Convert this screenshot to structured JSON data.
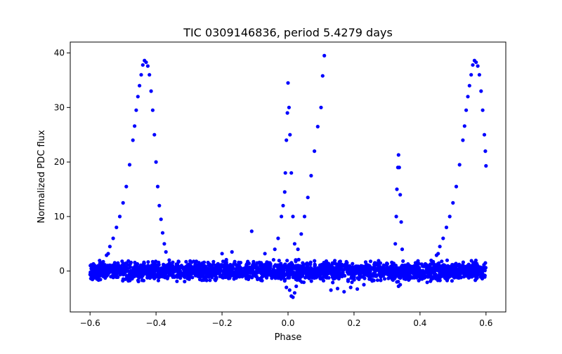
{
  "chart_data": {
    "type": "scatter",
    "title": "TIC 0309146836, period 5.4279 days",
    "xlabel": "Phase",
    "ylabel": "Normalized PDC flux",
    "xlim": [
      -0.66,
      0.66
    ],
    "ylim": [
      -7.5,
      42
    ],
    "x_ticks": [
      -0.6,
      -0.4,
      -0.2,
      0.0,
      0.2,
      0.4,
      0.6
    ],
    "x_tick_labels": [
      "−0.6",
      "−0.4",
      "−0.2",
      "0.0",
      "0.2",
      "0.4",
      "0.6"
    ],
    "y_ticks": [
      0,
      10,
      20,
      30,
      40
    ],
    "y_tick_labels": [
      "0",
      "10",
      "20",
      "30",
      "40"
    ],
    "grid": false,
    "marker_color": "#0000ff",
    "series": [
      {
        "points": [
          [
            -0.59,
            0.0
          ],
          [
            -0.58,
            0.3
          ],
          [
            -0.57,
            0.8
          ],
          [
            -0.56,
            1.7
          ],
          [
            -0.55,
            2.9
          ],
          [
            -0.545,
            3.2
          ],
          [
            -0.54,
            4.5
          ],
          [
            -0.53,
            6.0
          ],
          [
            -0.52,
            8.0
          ],
          [
            -0.51,
            10.0
          ],
          [
            -0.5,
            12.5
          ],
          [
            -0.49,
            15.5
          ],
          [
            -0.48,
            19.5
          ],
          [
            -0.47,
            24.0
          ],
          [
            -0.465,
            26.6
          ],
          [
            -0.46,
            29.5
          ],
          [
            -0.455,
            32.0
          ],
          [
            -0.45,
            34.0
          ],
          [
            -0.445,
            36.0
          ],
          [
            -0.44,
            37.8
          ],
          [
            -0.435,
            38.6
          ],
          [
            -0.43,
            38.3
          ],
          [
            -0.425,
            37.6
          ],
          [
            -0.42,
            36.0
          ],
          [
            -0.415,
            33.0
          ],
          [
            -0.41,
            29.5
          ],
          [
            -0.405,
            25.0
          ],
          [
            -0.4,
            20.0
          ],
          [
            -0.395,
            15.5
          ],
          [
            -0.39,
            12.0
          ],
          [
            -0.385,
            9.5
          ],
          [
            -0.38,
            7.0
          ],
          [
            -0.375,
            5.0
          ],
          [
            -0.37,
            3.5
          ],
          [
            -0.36,
            2.0
          ],
          [
            -0.35,
            1.0
          ],
          [
            -0.34,
            0.3
          ],
          [
            -0.2,
            3.2
          ],
          [
            -0.17,
            3.5
          ],
          [
            -0.11,
            7.3
          ],
          [
            -0.07,
            3.2
          ],
          [
            -0.055,
            1.5
          ],
          [
            -0.04,
            4.0
          ],
          [
            -0.03,
            6.0
          ],
          [
            -0.02,
            10.0
          ],
          [
            -0.015,
            12.0
          ],
          [
            -0.01,
            14.5
          ],
          [
            -0.008,
            18.0
          ],
          [
            -0.005,
            24.0
          ],
          [
            -0.002,
            29.0
          ],
          [
            0.0,
            34.5
          ],
          [
            0.003,
            30.0
          ],
          [
            0.006,
            25.0
          ],
          [
            0.01,
            18.0
          ],
          [
            0.015,
            10.0
          ],
          [
            0.02,
            5.0
          ],
          [
            0.025,
            2.0
          ],
          [
            0.03,
            4.0
          ],
          [
            0.04,
            6.8
          ],
          [
            0.05,
            10.0
          ],
          [
            0.06,
            13.5
          ],
          [
            0.07,
            17.5
          ],
          [
            0.08,
            22.0
          ],
          [
            0.09,
            26.5
          ],
          [
            0.1,
            30.0
          ],
          [
            0.105,
            35.8
          ],
          [
            0.11,
            39.5
          ],
          [
            0.005,
            -3.5
          ],
          [
            0.01,
            -4.6
          ],
          [
            0.015,
            -4.8
          ],
          [
            0.02,
            -4.0
          ],
          [
            0.025,
            -2.8
          ],
          [
            0.03,
            -1.5
          ],
          [
            -0.01,
            -1.8
          ],
          [
            -0.005,
            -3.0
          ],
          [
            0.13,
            -3.5
          ],
          [
            0.15,
            -3.2
          ],
          [
            0.17,
            -3.8
          ],
          [
            0.19,
            -3.0
          ],
          [
            0.21,
            -3.3
          ],
          [
            0.23,
            -2.5
          ],
          [
            0.25,
            -1.5
          ],
          [
            0.325,
            5.0
          ],
          [
            0.328,
            10.0
          ],
          [
            0.33,
            15.0
          ],
          [
            0.333,
            19.0
          ],
          [
            0.335,
            21.3
          ],
          [
            0.337,
            19.0
          ],
          [
            0.34,
            14.0
          ],
          [
            0.343,
            9.0
          ],
          [
            0.346,
            4.0
          ],
          [
            0.35,
            1.0
          ],
          [
            0.33,
            -2.0
          ],
          [
            0.335,
            -2.8
          ],
          [
            0.34,
            -2.5
          ],
          [
            0.41,
            0.0
          ],
          [
            0.42,
            0.3
          ],
          [
            0.43,
            0.8
          ],
          [
            0.44,
            1.7
          ],
          [
            0.45,
            2.9
          ],
          [
            0.455,
            3.2
          ],
          [
            0.46,
            4.5
          ],
          [
            0.47,
            6.0
          ],
          [
            0.48,
            8.0
          ],
          [
            0.49,
            10.0
          ],
          [
            0.5,
            12.5
          ],
          [
            0.51,
            15.5
          ],
          [
            0.52,
            19.5
          ],
          [
            0.53,
            24.0
          ],
          [
            0.535,
            26.6
          ],
          [
            0.54,
            29.5
          ],
          [
            0.545,
            32.0
          ],
          [
            0.55,
            34.0
          ],
          [
            0.555,
            36.0
          ],
          [
            0.56,
            37.8
          ],
          [
            0.565,
            38.6
          ],
          [
            0.57,
            38.3
          ],
          [
            0.575,
            37.6
          ],
          [
            0.58,
            36.0
          ],
          [
            0.585,
            33.0
          ],
          [
            0.59,
            29.5
          ],
          [
            0.595,
            25.0
          ],
          [
            0.598,
            22.0
          ],
          [
            0.6,
            19.3
          ]
        ]
      }
    ],
    "baseline_band": {
      "x_range": [
        -0.6,
        0.6
      ],
      "center": 0.0,
      "spread": 1.6,
      "count": 2400
    }
  }
}
